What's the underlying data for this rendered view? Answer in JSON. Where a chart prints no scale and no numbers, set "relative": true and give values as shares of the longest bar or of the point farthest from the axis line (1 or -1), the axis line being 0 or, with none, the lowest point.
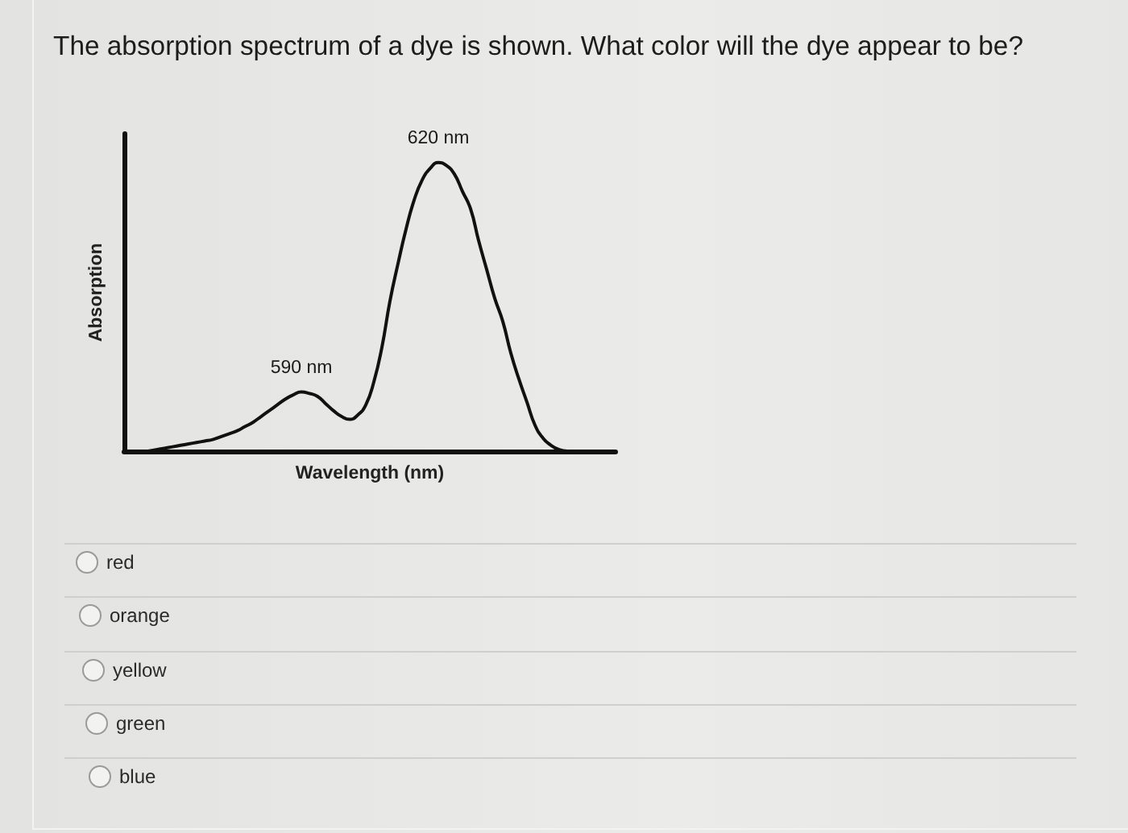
{
  "chart_data": {
    "type": "line",
    "title": "The absorption spectrum of a dye is shown. What color will the dye appear to be?",
    "xlabel": "Wavelength (nm)",
    "ylabel": "Absorption",
    "relative": true,
    "tick_labels": false,
    "marker": "none",
    "line_style": "solid",
    "color": "#111111",
    "categories": [
      null,
      null,
      null,
      null,
      null,
      null,
      null,
      null,
      null,
      null,
      null,
      null,
      null,
      null,
      null,
      null,
      null,
      null,
      null,
      null,
      null,
      null,
      null,
      null,
      null,
      null,
      null,
      null,
      null,
      null,
      null,
      null,
      null,
      null,
      null,
      null,
      null,
      null,
      null,
      null,
      null,
      null,
      null,
      null,
      null,
      null,
      null,
      null,
      null,
      null,
      null,
      null,
      null,
      null,
      null,
      null,
      null,
      null,
      null,
      null,
      null,
      null
    ],
    "values": [
      null,
      null,
      null,
      0.0,
      0.005,
      0.01,
      0.015,
      0.02,
      0.025,
      0.03,
      0.035,
      0.04,
      0.05,
      0.06,
      0.07,
      0.085,
      0.1,
      0.12,
      0.14,
      0.16,
      0.18,
      0.195,
      0.205,
      0.2,
      0.19,
      0.165,
      0.14,
      0.12,
      0.11,
      0.125,
      0.16,
      0.24,
      0.36,
      0.52,
      0.65,
      0.77,
      0.87,
      0.94,
      0.98,
      1.0,
      0.99,
      0.96,
      0.9,
      0.84,
      0.73,
      0.63,
      0.53,
      0.45,
      0.34,
      0.25,
      0.17,
      0.09,
      0.045,
      0.02,
      0.005,
      0.0,
      null,
      null,
      null,
      null,
      null,
      null
    ],
    "annotations": [
      {
        "text": "590 nm",
        "y": 0.205
      },
      {
        "text": "620 nm",
        "y": 1.0
      },
      "red",
      "orange",
      "yellow",
      "green",
      "blue"
    ]
  }
}
